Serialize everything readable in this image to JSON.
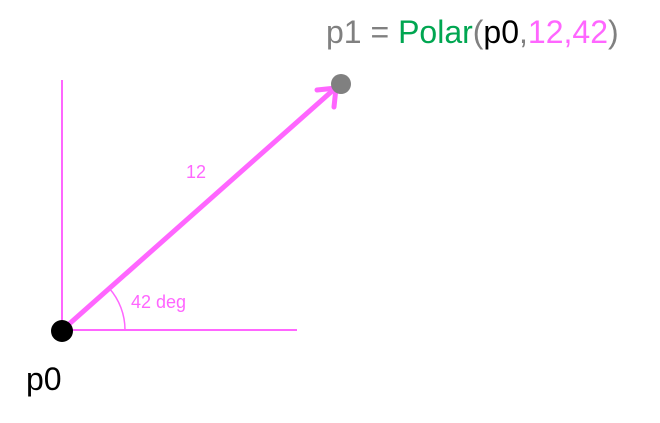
{
  "formula": {
    "lhs": "p1",
    "equals": " = ",
    "func": "Polar",
    "open_paren": "(",
    "arg_point": "p0",
    "comma1": ",",
    "arg_length": "12",
    "comma2": ",",
    "arg_angle": "42",
    "close_paren": ")"
  },
  "labels": {
    "origin": "p0",
    "length": "12",
    "angle": "42 deg"
  },
  "colors": {
    "accent": "#FF66FF",
    "function": "#00A651",
    "muted": "#808080",
    "text": "#000000"
  }
}
